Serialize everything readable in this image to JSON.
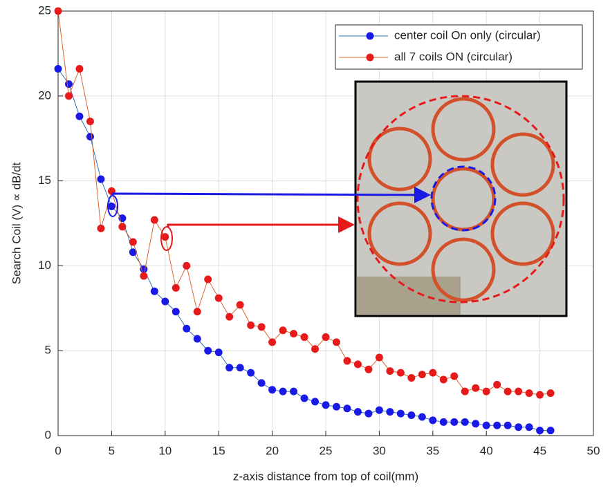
{
  "chart_data": {
    "type": "line",
    "xlabel": "z-axis distance from top of coil(mm)",
    "ylabel": "Search Coil (V) ∝ dB/dt",
    "x": [
      0,
      1,
      2,
      3,
      4,
      5,
      6,
      7,
      8,
      9,
      10,
      11,
      12,
      13,
      14,
      15,
      16,
      17,
      18,
      19,
      20,
      21,
      22,
      23,
      24,
      25,
      26,
      27,
      28,
      29,
      30,
      31,
      32,
      33,
      34,
      35,
      36,
      37,
      38,
      39,
      40,
      41,
      42,
      43,
      44,
      45,
      46
    ],
    "series": [
      {
        "name": "center coil On only (circular)",
        "color": "#1a1ae6",
        "line_color": "#2f6fb0",
        "values": [
          21.6,
          20.7,
          18.8,
          17.6,
          15.1,
          13.5,
          12.8,
          10.8,
          9.8,
          8.5,
          7.9,
          7.3,
          6.3,
          5.7,
          5.0,
          4.9,
          4.0,
          4.0,
          3.7,
          3.1,
          2.7,
          2.6,
          2.6,
          2.2,
          2.0,
          1.8,
          1.7,
          1.6,
          1.4,
          1.3,
          1.5,
          1.4,
          1.3,
          1.2,
          1.1,
          0.9,
          0.8,
          0.8,
          0.8,
          0.7,
          0.6,
          0.6,
          0.6,
          0.5,
          0.5,
          0.3,
          0.3
        ]
      },
      {
        "name": "all 7 coils ON (circular)",
        "color": "#e61a1a",
        "line_color": "#d9652a",
        "values": [
          25.0,
          20.0,
          21.6,
          18.5,
          12.2,
          14.4,
          12.3,
          11.4,
          9.4,
          12.7,
          11.7,
          8.7,
          10.0,
          7.3,
          9.2,
          8.1,
          7.0,
          7.7,
          6.5,
          6.4,
          5.5,
          6.2,
          6.0,
          5.8,
          5.1,
          5.8,
          5.5,
          4.4,
          4.2,
          3.9,
          4.6,
          3.8,
          3.7,
          3.4,
          3.6,
          3.7,
          3.3,
          3.5,
          2.6,
          2.8,
          2.6,
          3.0,
          2.6,
          2.6,
          2.5,
          2.4,
          2.5
        ]
      }
    ],
    "xlim": [
      0,
      50
    ],
    "xticks": [
      0,
      5,
      10,
      15,
      20,
      25,
      30,
      35,
      40,
      45,
      50
    ],
    "ylim": [
      0,
      25
    ],
    "yticks": [
      0,
      5,
      10,
      15,
      20,
      25
    ],
    "grid": true,
    "legend": "upper right"
  }
}
